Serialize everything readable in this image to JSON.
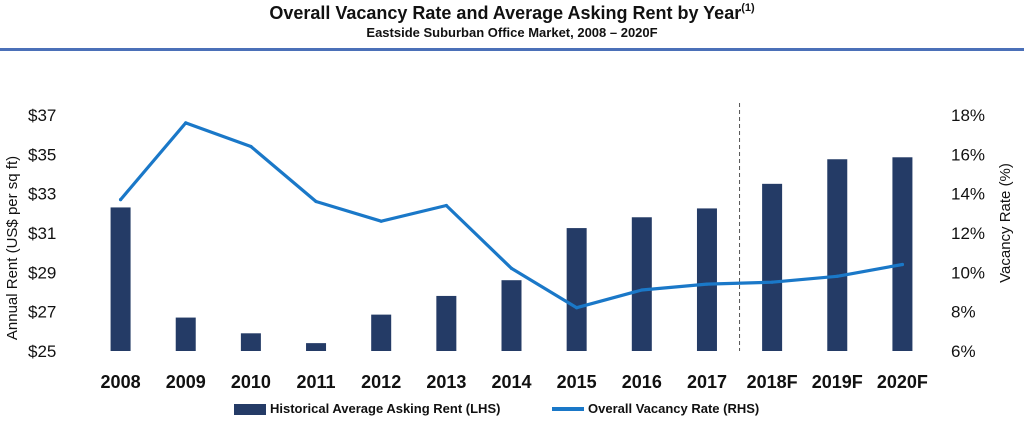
{
  "header": {
    "title": "Overall Vacancy Rate and Average Asking Rent by Year",
    "title_note": "(1)",
    "subtitle": "Eastside Suburban Office Market, 2008 – 2020F"
  },
  "colors": {
    "bar": "#243b66",
    "line": "#1a78c8",
    "rule": "#4b70b8",
    "divider": "#555555"
  },
  "legend": {
    "bars_label": "Historical Average Asking Rent (LHS)",
    "line_label": "Overall Vacancy Rate (RHS)",
    "placement": "bottom-center"
  },
  "chart_data": {
    "type": "bar",
    "title": "Overall Vacancy Rate and Average Asking Rent by Year",
    "subtitle": "Eastside Suburban Office Market, 2008 – 2020F",
    "categories": [
      "2008",
      "2009",
      "2010",
      "2011",
      "2012",
      "2013",
      "2014",
      "2015",
      "2016",
      "2017",
      "2018F",
      "2019F",
      "2020F"
    ],
    "ylabel": "Annual Rent (US$ per sq ft)",
    "ylim": [
      25,
      37
    ],
    "yticks": [
      25,
      27,
      29,
      31,
      33,
      35,
      37
    ],
    "ytick_labels": [
      "$25",
      "$27",
      "$29",
      "$31",
      "$33",
      "$35",
      "$37"
    ],
    "y2label": "Vacancy Rate (%)",
    "y2lim": [
      6,
      18
    ],
    "y2ticks": [
      6,
      8,
      10,
      12,
      14,
      16,
      18
    ],
    "y2tick_labels": [
      "6%",
      "8%",
      "10%",
      "12%",
      "14%",
      "16%",
      "18%"
    ],
    "grid": false,
    "forecast_divider_after": "2017",
    "series": [
      {
        "name": "Historical Average Asking Rent (LHS)",
        "type": "bar",
        "axis": "left",
        "values": [
          32.3,
          26.7,
          25.9,
          25.4,
          26.85,
          27.8,
          28.6,
          31.25,
          31.8,
          32.25,
          33.5,
          34.75,
          34.85
        ]
      },
      {
        "name": "Overall Vacancy Rate (RHS)",
        "type": "line",
        "axis": "right",
        "values": [
          13.7,
          17.6,
          16.4,
          13.6,
          12.6,
          13.4,
          10.2,
          8.2,
          9.1,
          9.4,
          9.5,
          9.8,
          10.4
        ]
      }
    ]
  }
}
